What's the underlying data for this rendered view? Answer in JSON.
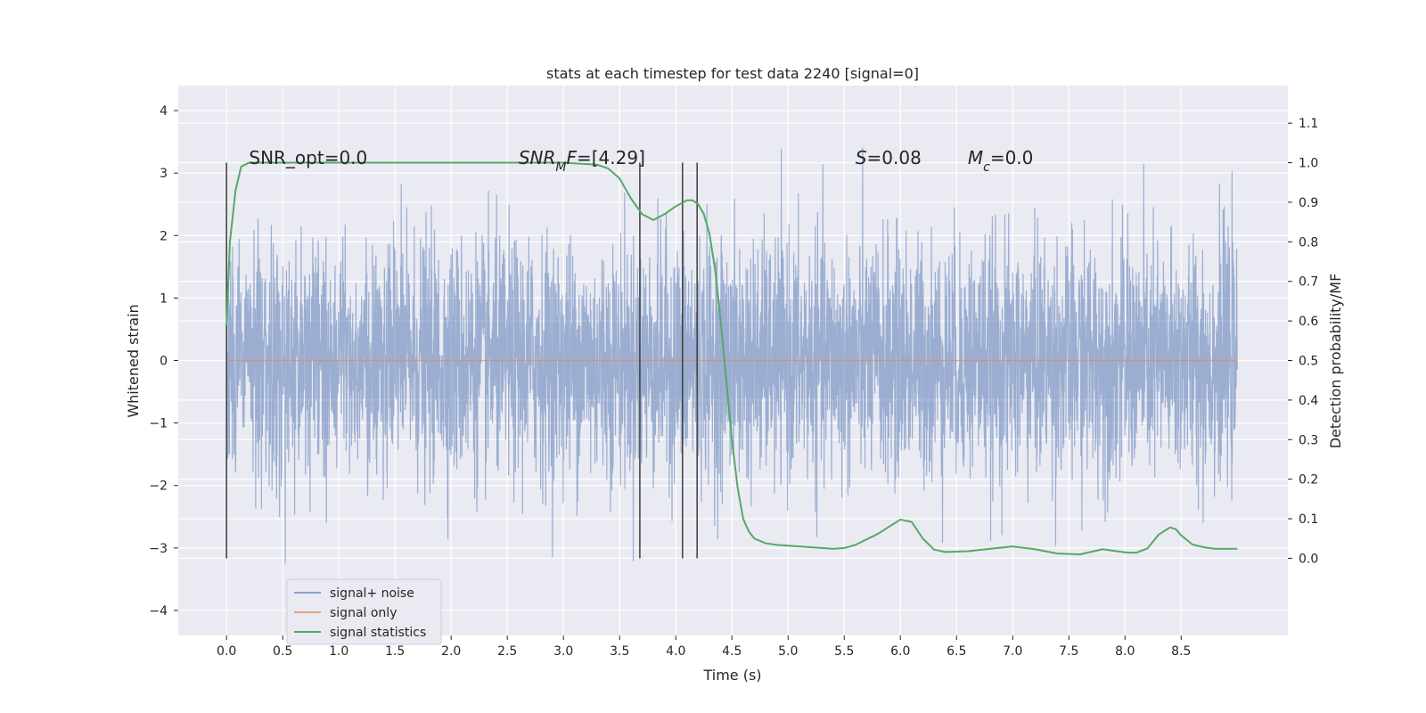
{
  "chart_data": {
    "type": "line",
    "title": "stats at each timestep for test data 2240 [signal=0]",
    "xlabel": "Time (s)",
    "ylabel": "Whitened strain",
    "ylabel_right": "Detection probability/MF",
    "xlim": [
      -0.43,
      9.45
    ],
    "ylim": [
      -4.4,
      4.4
    ],
    "ylim_right": [
      -0.195,
      1.195
    ],
    "x_ticks": [
      "0.0",
      "0.5",
      "1.0",
      "1.5",
      "2.0",
      "2.5",
      "3.0",
      "3.5",
      "4.0",
      "4.5",
      "5.0",
      "5.5",
      "6.0",
      "6.5",
      "7.0",
      "7.5",
      "8.0",
      "8.5"
    ],
    "y_ticks_left": [
      "4",
      "3",
      "2",
      "1",
      "0",
      "−1",
      "−2",
      "−3",
      "−4"
    ],
    "y_ticks_right": [
      "1.1",
      "1.0",
      "0.9",
      "0.8",
      "0.7",
      "0.6",
      "0.5",
      "0.4",
      "0.3",
      "0.2",
      "0.1",
      "0.0"
    ],
    "grid": true,
    "legend_position": "lower-left",
    "annotations": [
      {
        "text": "SNR_opt=0.0",
        "x": 0.2
      },
      {
        "text": "SNR_MF=[4.29]",
        "x": 2.6
      },
      {
        "text": "S=0.08",
        "x": 5.6
      },
      {
        "text": "M_c=0.0",
        "x": 6.6
      }
    ],
    "vertical_markers_x": [
      0.0,
      3.68,
      4.06,
      4.19
    ],
    "series": [
      {
        "name": "signal+ noise",
        "color": "#4c72b0",
        "description_type": "noise",
        "x_range": [
          0.0,
          9.0
        ],
        "envelope_max": 4.0,
        "envelope_min": -3.9
      },
      {
        "name": "signal only",
        "color": "#dd8452",
        "x": [
          0.0,
          9.0
        ],
        "y": [
          0.0,
          0.0
        ]
      },
      {
        "name": "signal statistics",
        "color": "#55a868",
        "axis": "right",
        "x": [
          0.0,
          0.03,
          0.08,
          0.13,
          0.2,
          0.3,
          0.5,
          1.0,
          2.0,
          3.0,
          3.3,
          3.4,
          3.5,
          3.6,
          3.7,
          3.8,
          3.9,
          4.0,
          4.1,
          4.15,
          4.2,
          4.25,
          4.3,
          4.35,
          4.4,
          4.45,
          4.5,
          4.55,
          4.6,
          4.65,
          4.7,
          4.8,
          4.9,
          5.0,
          5.2,
          5.4,
          5.5,
          5.6,
          5.8,
          6.0,
          6.1,
          6.2,
          6.3,
          6.4,
          6.6,
          6.8,
          7.0,
          7.2,
          7.4,
          7.6,
          7.8,
          8.0,
          8.1,
          8.2,
          8.3,
          8.4,
          8.45,
          8.5,
          8.6,
          8.7,
          8.8,
          9.0
        ],
        "y": [
          0.59,
          0.8,
          0.93,
          0.99,
          1.0,
          1.0,
          1.0,
          1.0,
          1.0,
          1.0,
          0.995,
          0.985,
          0.96,
          0.91,
          0.87,
          0.855,
          0.87,
          0.89,
          0.905,
          0.905,
          0.895,
          0.87,
          0.82,
          0.73,
          0.6,
          0.45,
          0.3,
          0.18,
          0.1,
          0.068,
          0.05,
          0.038,
          0.034,
          0.032,
          0.028,
          0.024,
          0.026,
          0.034,
          0.062,
          0.098,
          0.092,
          0.05,
          0.022,
          0.016,
          0.018,
          0.024,
          0.03,
          0.023,
          0.012,
          0.01,
          0.023,
          0.015,
          0.014,
          0.025,
          0.06,
          0.078,
          0.074,
          0.058,
          0.035,
          0.028,
          0.024,
          0.024
        ]
      }
    ]
  }
}
